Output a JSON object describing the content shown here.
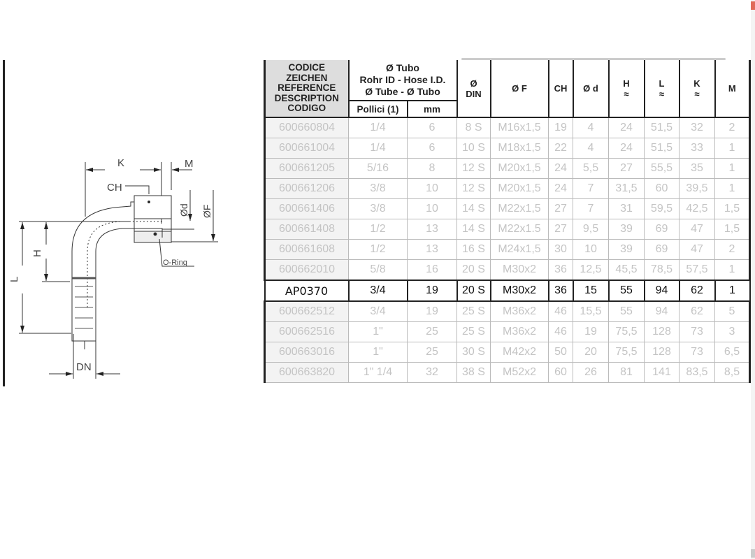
{
  "diagram": {
    "labels": {
      "K": "K",
      "M": "M",
      "CH": "CH",
      "d": "Ød",
      "F": "ØF",
      "H": "H",
      "L": "L",
      "oring": "O-Ring",
      "DN": "DN"
    }
  },
  "table": {
    "headers": {
      "code": [
        "CODICE",
        "ZEICHEN",
        "REFERENCE",
        "DESCRIPTION",
        "CODIGO"
      ],
      "tube": [
        "Ø Tubo",
        "Rohr ID - Hose I.D.",
        "Ø Tube - Ø Tubo"
      ],
      "pollici": "Pollici (1)",
      "mm": "mm",
      "din": [
        "Ø",
        "DIN"
      ],
      "f": "Ø F",
      "ch": "CH",
      "d": "Ø d",
      "h": [
        "H",
        "≈"
      ],
      "l": [
        "L",
        "≈"
      ],
      "k": [
        "K",
        "≈"
      ],
      "m": "M"
    },
    "highlight_row": 8,
    "rows": [
      [
        "600660804",
        "1/4",
        "6",
        "8 S",
        "M16x1,5",
        "19",
        "4",
        "24",
        "51,5",
        "32",
        "2"
      ],
      [
        "600661004",
        "1/4",
        "6",
        "10 S",
        "M18x1,5",
        "22",
        "4",
        "24",
        "51,5",
        "33",
        "1"
      ],
      [
        "600661205",
        "5/16",
        "8",
        "12 S",
        "M20x1,5",
        "24",
        "5,5",
        "27",
        "55,5",
        "35",
        "1"
      ],
      [
        "600661206",
        "3/8",
        "10",
        "12 S",
        "M20x1,5",
        "24",
        "7",
        "31,5",
        "60",
        "39,5",
        "1"
      ],
      [
        "600661406",
        "3/8",
        "10",
        "14 S",
        "M22x1,5",
        "27",
        "7",
        "31",
        "59,5",
        "42,5",
        "1,5"
      ],
      [
        "600661408",
        "1/2",
        "13",
        "14 S",
        "M22x1.5",
        "27",
        "9,5",
        "39",
        "69",
        "47",
        "1,5"
      ],
      [
        "600661608",
        "1/2",
        "13",
        "16 S",
        "M24x1,5",
        "30",
        "10",
        "39",
        "69",
        "47",
        "2"
      ],
      [
        "600662010",
        "5/8",
        "16",
        "20 S",
        "M30x2",
        "36",
        "12,5",
        "45,5",
        "78,5",
        "57,5",
        "1"
      ],
      [
        "AP0370",
        "3/4",
        "19",
        "20 S",
        "M30x2",
        "36",
        "15",
        "55",
        "94",
        "62",
        "1"
      ],
      [
        "600662512",
        "3/4",
        "19",
        "25 S",
        "M36x2",
        "46",
        "15,5",
        "55",
        "94",
        "62",
        "5"
      ],
      [
        "600662516",
        "1\"",
        "25",
        "25 S",
        "M36x2",
        "46",
        "19",
        "75,5",
        "128",
        "73",
        "3"
      ],
      [
        "600663016",
        "1\"",
        "25",
        "30 S",
        "M42x2",
        "50",
        "20",
        "75,5",
        "128",
        "73",
        "6,5"
      ],
      [
        "600663820",
        "1\" 1/4",
        "32",
        "38 S",
        "M52x2",
        "60",
        "26",
        "81",
        "141",
        "83,5",
        "8,5"
      ]
    ]
  }
}
